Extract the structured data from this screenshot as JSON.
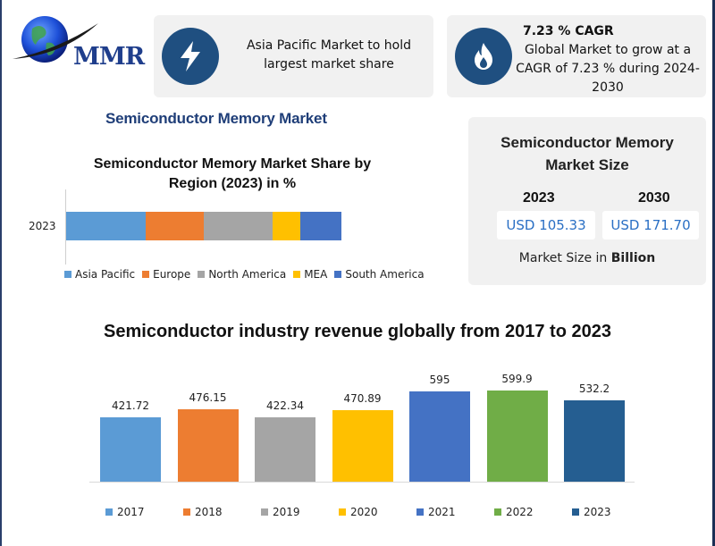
{
  "logo": {
    "text": "MMR"
  },
  "card1": {
    "icon": "lightning-icon",
    "text_line1": "Asia Pacific Market to hold",
    "text_line2": "largest market share"
  },
  "card2": {
    "icon": "flame-icon",
    "title": "7.23 % CAGR",
    "text_line1": "Global Market to grow at a",
    "text_line2": "CAGR of 7.23 % during 2024-",
    "text_line3": "2030"
  },
  "section_title": "Semiconductor Memory Market",
  "size_card": {
    "title_line1": "Semiconductor Memory",
    "title_line2": "Market Size",
    "year_a": "2023",
    "year_b": "2030",
    "value_a": "USD 105.33",
    "value_b": "USD 171.70",
    "foot_prefix": "Market Size in ",
    "foot_bold": "Billion"
  },
  "colors": {
    "asia_pacific": "#5b9bd5",
    "europe": "#ed7d31",
    "north_america": "#a5a5a5",
    "mea": "#ffc000",
    "south_america": "#4472c4",
    "y2017": "#5b9bd5",
    "y2018": "#ed7d31",
    "y2019": "#a5a5a5",
    "y2020": "#ffc000",
    "y2021": "#4472c4",
    "y2022": "#70ad47",
    "y2023": "#255e91"
  },
  "chart_data": [
    {
      "type": "bar",
      "stacked": true,
      "orientation": "horizontal",
      "title": "Semiconductor Memory Market Share by Region (2023) in %",
      "title_line1": "Semiconductor Memory Market Share by",
      "title_line2": "Region (2023) in %",
      "categories": [
        "2023"
      ],
      "series": [
        {
          "name": "Asia Pacific",
          "values": [
            29
          ]
        },
        {
          "name": "Europe",
          "values": [
            21
          ]
        },
        {
          "name": "North America",
          "values": [
            25
          ]
        },
        {
          "name": "MEA",
          "values": [
            10
          ]
        },
        {
          "name": "South America",
          "values": [
            15
          ]
        }
      ],
      "legend": "bottom"
    },
    {
      "type": "bar",
      "title": "Semiconductor industry revenue globally from 2017 to 2023",
      "categories": [
        "2017",
        "2018",
        "2019",
        "2020",
        "2021",
        "2022",
        "2023"
      ],
      "values": [
        421.72,
        476.15,
        422.34,
        470.89,
        595,
        599.9,
        532.2
      ],
      "labels": [
        "421.72",
        "476.15",
        "422.34",
        "470.89",
        "595",
        "599.9",
        "532.2"
      ],
      "ylim": [
        0,
        620
      ],
      "legend": "bottom"
    }
  ]
}
